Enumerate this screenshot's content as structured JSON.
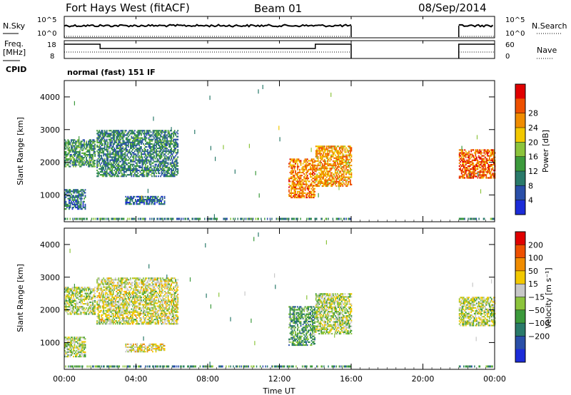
{
  "header": {
    "radar_title": "Fort Hays West (fitACF)",
    "beam": "Beam 01",
    "date": "08/Sep/2014"
  },
  "params": {
    "nsky_label": "N.Sky",
    "nsky_ticks": [
      "10^5",
      "10^0"
    ],
    "nsearch_label": "N.Search",
    "nsearch_ticks": [
      "10^5",
      "10^0"
    ],
    "freq_label_1": "Freq.",
    "freq_label_2": "[MHz]",
    "freq_ticks": [
      "18",
      "8"
    ],
    "nave_label": "Nave",
    "nave_ticks": [
      "60",
      "0"
    ],
    "cpid_label": "CPID",
    "cpid_value": "normal (fast) 151 IF"
  },
  "chart_data": [
    {
      "type": "heatmap",
      "panel": "power",
      "ylabel": "Slant Range [km]",
      "xlabel": "",
      "x_range_hours": [
        0,
        24
      ],
      "ylim": [
        180,
        4500
      ],
      "y_ticks": [
        "1000",
        "2000",
        "3000",
        "4000"
      ],
      "x_ticks": [
        "00:00",
        "04:00",
        "08:00",
        "12:00",
        "16:00",
        "20:00",
        "00:00"
      ],
      "colorbar_label": "Power [dB]",
      "colorbar_ticks": [
        "4",
        "8",
        "12",
        "16",
        "20",
        "24",
        "28"
      ],
      "colorbar_colors": [
        "#1c2cd8",
        "#2a4fa8",
        "#2a7a6a",
        "#3c9a3c",
        "#8cc43c",
        "#f2c800",
        "#f08c00",
        "#ee5000",
        "#e00000"
      ],
      "echo_regions": [
        {
          "t0": 0.0,
          "t1": 1.7,
          "r0": 1850,
          "r1": 2700,
          "level": 0.35
        },
        {
          "t0": 0.0,
          "t1": 1.2,
          "r0": 550,
          "r1": 1150,
          "level": 0.25
        },
        {
          "t0": 1.8,
          "t1": 6.3,
          "r0": 1550,
          "r1": 2950,
          "level": 0.3
        },
        {
          "t0": 3.4,
          "t1": 5.6,
          "r0": 700,
          "r1": 950,
          "level": 0.2
        },
        {
          "t0": 12.5,
          "t1": 14.0,
          "r0": 900,
          "r1": 2100,
          "level": 0.75
        },
        {
          "t0": 14.0,
          "t1": 16.0,
          "r0": 1250,
          "r1": 2500,
          "level": 0.7
        },
        {
          "t0": 22.0,
          "t1": 24.0,
          "r0": 1500,
          "r1": 2400,
          "level": 0.8
        }
      ]
    },
    {
      "type": "heatmap",
      "panel": "velocity",
      "ylabel": "Slant Range [km]",
      "xlabel": "Time UT",
      "x_range_hours": [
        0,
        24
      ],
      "ylim": [
        180,
        4500
      ],
      "y_ticks": [
        "1000",
        "2000",
        "3000",
        "4000"
      ],
      "x_ticks": [
        "00:00",
        "04:00",
        "08:00",
        "12:00",
        "16:00",
        "20:00",
        "00:00"
      ],
      "colorbar_label": "Velocity [m s⁻¹]",
      "colorbar_ticks": [
        "200",
        "100",
        "50",
        "15",
        "−15",
        "−50",
        "−100",
        "−200"
      ],
      "colorbar_colors": [
        "#1c2cd8",
        "#2a4fa8",
        "#2a7a6a",
        "#3c9a3c",
        "#8cc43c",
        "#c8c8c8",
        "#f2c800",
        "#f08c00",
        "#ee5000",
        "#e00000"
      ],
      "echo_regions": [
        {
          "t0": 0.0,
          "t1": 1.7,
          "r0": 1850,
          "r1": 2700,
          "level": 0.5
        },
        {
          "t0": 0.0,
          "t1": 1.2,
          "r0": 550,
          "r1": 1150,
          "level": 0.5
        },
        {
          "t0": 1.8,
          "t1": 6.3,
          "r0": 1550,
          "r1": 2950,
          "level": 0.55
        },
        {
          "t0": 3.4,
          "t1": 5.6,
          "r0": 700,
          "r1": 950,
          "level": 0.6
        },
        {
          "t0": 12.5,
          "t1": 14.0,
          "r0": 900,
          "r1": 2100,
          "level": 0.35
        },
        {
          "t0": 14.0,
          "t1": 16.0,
          "r0": 1250,
          "r1": 2500,
          "level": 0.5
        },
        {
          "t0": 22.0,
          "t1": 24.0,
          "r0": 1500,
          "r1": 2400,
          "level": 0.52
        }
      ]
    }
  ],
  "params_data": {
    "freq_step_hours": [
      2.0,
      14.0
    ],
    "data_gap_hours": [
      16.0,
      22.0
    ]
  }
}
